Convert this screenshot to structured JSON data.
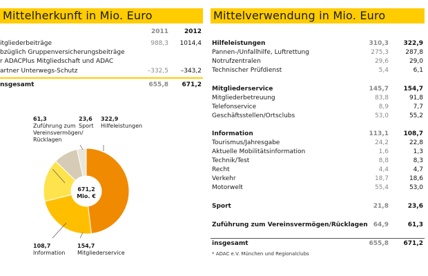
{
  "left": {
    "title": "Mittelherkunft in Mio. Euro",
    "years": [
      "2011",
      "2012"
    ],
    "rows": [
      {
        "label": "itgliederbeiträge",
        "v2011": "988,3",
        "v2012": "1014,4"
      },
      {
        "label": "bzüglich Gruppenversicherungsbeiträge",
        "v2011": "",
        "v2012": ""
      },
      {
        "label": "r ADACPlus Mitgliedschaft und ADAC",
        "v2011": "",
        "v2012": ""
      },
      {
        "label": "artner Unterwegs-Schutz",
        "v2011": "–332,5",
        "v2012": "–343,2"
      }
    ],
    "total": {
      "label": "nsgesamt",
      "v2011": "655,8",
      "v2012": "671,2"
    }
  },
  "pie": {
    "center_value": "671,2",
    "center_unit": "Mio. €",
    "labels": [
      {
        "value": "61,3",
        "text": [
          "Zuführung zum",
          "Vereinsvermögen/",
          "Rücklagen"
        ]
      },
      {
        "value": "23,6",
        "text": [
          "Sport"
        ]
      },
      {
        "value": "322,9",
        "text": [
          "Hilfeleistungen"
        ]
      },
      {
        "value": "108,7",
        "text": [
          "Information"
        ]
      },
      {
        "value": "154,7",
        "text": [
          "Mitgliederservice"
        ]
      }
    ],
    "slices": [
      {
        "value": 322.9,
        "color": "#f08a00"
      },
      {
        "value": 154.7,
        "color": "#ffbf00"
      },
      {
        "value": 108.7,
        "color": "#ffe34d"
      },
      {
        "value": 61.3,
        "color": "#d6cbb5"
      },
      {
        "value": 23.6,
        "color": "#ece6d8"
      }
    ]
  },
  "right": {
    "title": "Mittelverwendung in Mio. Euro",
    "groups": [
      {
        "head": {
          "label": "Hilfeleistungen",
          "v2011": "310,3",
          "v2012": "322,9"
        },
        "rows": [
          {
            "label": "Pannen-/Unfallhilfe, Luftrettung",
            "v2011": "275,3",
            "v2012": "287,8"
          },
          {
            "label": "Notrufzentralen",
            "v2011": "29,6",
            "v2012": "29,0"
          },
          {
            "label": "Technischer Prüfdienst",
            "v2011": "5,4",
            "v2012": "6,1"
          }
        ]
      },
      {
        "head": {
          "label": "Mitgliederservice",
          "v2011": "145,7",
          "v2012": "154,7"
        },
        "rows": [
          {
            "label": "Mitgliederbetreuung",
            "v2011": "83,8",
            "v2012": "91,8"
          },
          {
            "label": "Telefonservice",
            "v2011": "8,9",
            "v2012": "7,7"
          },
          {
            "label": "Geschäftsstellen/Ortsclubs",
            "v2011": "53,0",
            "v2012": "55,2"
          }
        ]
      },
      {
        "head": {
          "label": "Information",
          "v2011": "113,1",
          "v2012": "108,7"
        },
        "rows": [
          {
            "label": "Tourismus/Jahresgabe",
            "v2011": "24,2",
            "v2012": "22,8"
          },
          {
            "label": "Aktuelle Mobilitätsinformation",
            "v2011": "1,6",
            "v2012": "1,3"
          },
          {
            "label": "Technik/Test",
            "v2011": "8,8",
            "v2012": "8,3"
          },
          {
            "label": "Recht",
            "v2011": "4,4",
            "v2012": "4,7"
          },
          {
            "label": "Verkehr",
            "v2011": "18,7",
            "v2012": "18,6"
          },
          {
            "label": "Motorwelt",
            "v2011": "55,4",
            "v2012": "53,0"
          }
        ]
      },
      {
        "head": {
          "label": "Sport",
          "v2011": "21,8",
          "v2012": "23,6"
        },
        "rows": []
      },
      {
        "head": {
          "label": "Zuführung zum Vereinsvermögen/Rücklagen",
          "v2011": "64,9",
          "v2012": "61,3"
        },
        "rows": []
      }
    ],
    "total": {
      "label": "insgesamt",
      "v2011": "655,8",
      "v2012": "671,2"
    },
    "footnote": "* ADAC e.V. München und Regionalclubs"
  }
}
